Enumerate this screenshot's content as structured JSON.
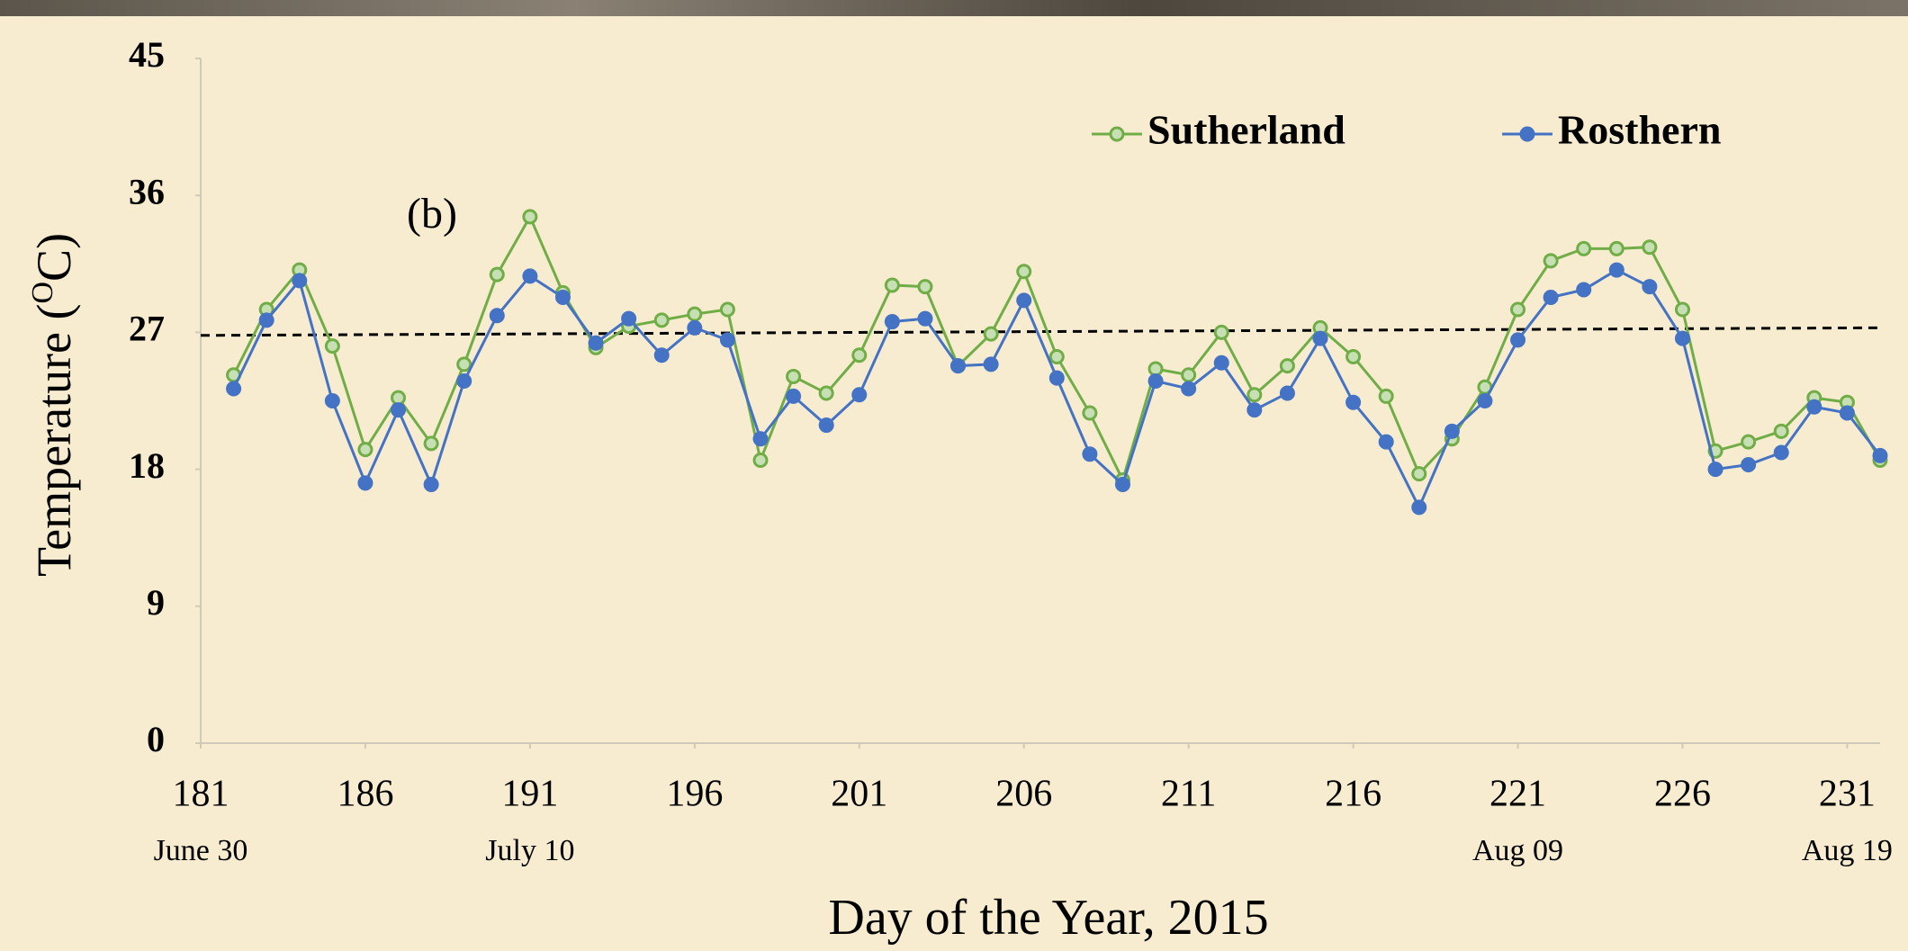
{
  "chart_data": {
    "type": "line",
    "annotation": "(b)",
    "x_label": "Day of  the Year, 2015",
    "y_label": [
      "Temperature (",
      "O",
      "C)"
    ],
    "x": [
      182,
      183,
      184,
      185,
      186,
      187,
      188,
      189,
      190,
      191,
      192,
      193,
      194,
      195,
      196,
      197,
      198,
      199,
      200,
      201,
      202,
      203,
      204,
      205,
      206,
      207,
      208,
      209,
      210,
      211,
      212,
      213,
      214,
      215,
      216,
      217,
      218,
      219,
      220,
      221,
      222,
      223,
      224,
      225,
      226,
      227,
      228,
      229,
      230,
      231,
      232
    ],
    "series": [
      {
        "name": "Sutherland",
        "color": "#70ad47",
        "marker": "open",
        "values": [
          24.2,
          28.5,
          31.1,
          26.1,
          19.3,
          22.7,
          19.7,
          24.9,
          30.8,
          34.6,
          29.6,
          26.0,
          27.4,
          27.8,
          28.2,
          28.5,
          18.6,
          24.1,
          23.0,
          25.5,
          30.1,
          30.0,
          24.8,
          26.9,
          31.0,
          25.4,
          21.7,
          17.3,
          24.6,
          24.2,
          27.0,
          22.9,
          24.8,
          27.3,
          25.4,
          22.8,
          17.7,
          20.0,
          23.4,
          28.5,
          31.7,
          32.5,
          32.5,
          32.6,
          28.5,
          19.2,
          19.8,
          20.5,
          22.7,
          22.4,
          18.6
        ]
      },
      {
        "name": "Rosthern",
        "color": "#4472c4",
        "marker": "filled",
        "values": [
          23.3,
          27.8,
          30.4,
          22.5,
          17.1,
          21.9,
          17.0,
          23.8,
          28.1,
          30.7,
          29.3,
          26.3,
          27.9,
          25.5,
          27.3,
          26.5,
          20.0,
          22.8,
          20.9,
          22.9,
          27.7,
          27.9,
          24.8,
          24.9,
          29.1,
          24.0,
          19.0,
          17.0,
          23.8,
          23.3,
          25.0,
          21.9,
          23.0,
          26.6,
          22.4,
          19.8,
          15.5,
          20.5,
          22.5,
          26.5,
          29.3,
          29.8,
          31.1,
          30.0,
          26.6,
          18.0,
          18.3,
          19.1,
          22.1,
          21.7,
          18.9
        ]
      }
    ],
    "trend_line": {
      "x": [
        181,
        232
      ],
      "y": [
        26.8,
        27.3
      ],
      "color": "#000000"
    },
    "date_labels": [
      {
        "x": 181,
        "label": "June 30"
      },
      {
        "x": 191,
        "label": "July 10"
      },
      {
        "x": 221,
        "label": "Aug 09"
      },
      {
        "x": 231,
        "label": "Aug 19"
      }
    ],
    "xlim": [
      181,
      232
    ],
    "xticks": [
      181,
      186,
      191,
      196,
      201,
      206,
      211,
      216,
      221,
      226,
      231
    ],
    "ylim": [
      0,
      45
    ],
    "yticks": [
      0,
      9,
      18,
      27,
      36,
      45
    ],
    "legend": "top-right"
  }
}
